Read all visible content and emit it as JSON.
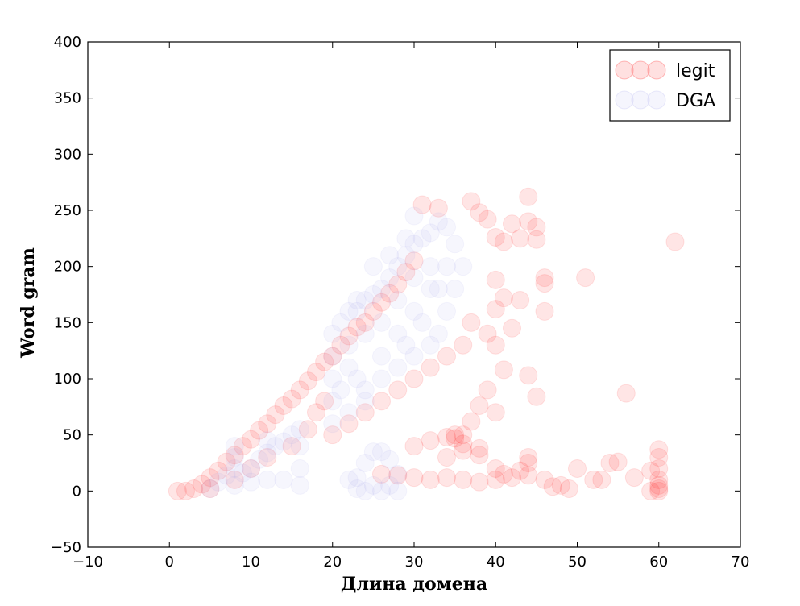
{
  "chart_data": {
    "type": "scatter",
    "title": "",
    "xlabel": "Длина домена",
    "ylabel": "Word gram",
    "xlim": [
      -10,
      70
    ],
    "ylim": [
      -50,
      400
    ],
    "xticks": [
      -10,
      0,
      10,
      20,
      30,
      40,
      50,
      60,
      70
    ],
    "yticks": [
      -50,
      0,
      50,
      100,
      150,
      200,
      250,
      300,
      350,
      400
    ],
    "xtick_labels": [
      "−10",
      "0",
      "10",
      "20",
      "30",
      "40",
      "50",
      "60",
      "70"
    ],
    "ytick_labels": [
      "−50",
      "0",
      "50",
      "100",
      "150",
      "200",
      "250",
      "300",
      "350",
      "400"
    ],
    "grid": false,
    "legend_position": "top-right",
    "series": [
      {
        "name": "legit",
        "color": "#ff0000",
        "opacity": 0.1,
        "points": [
          [
            1,
            0
          ],
          [
            2,
            0
          ],
          [
            3,
            2
          ],
          [
            4,
            6
          ],
          [
            5,
            12
          ],
          [
            6,
            18
          ],
          [
            7,
            26
          ],
          [
            8,
            32
          ],
          [
            9,
            40
          ],
          [
            10,
            46
          ],
          [
            11,
            54
          ],
          [
            12,
            60
          ],
          [
            13,
            68
          ],
          [
            14,
            76
          ],
          [
            15,
            82
          ],
          [
            16,
            90
          ],
          [
            17,
            98
          ],
          [
            18,
            106
          ],
          [
            19,
            115
          ],
          [
            20,
            120
          ],
          [
            21,
            130
          ],
          [
            22,
            138
          ],
          [
            23,
            146
          ],
          [
            24,
            150
          ],
          [
            25,
            160
          ],
          [
            26,
            168
          ],
          [
            27,
            176
          ],
          [
            28,
            184
          ],
          [
            29,
            195
          ],
          [
            30,
            205
          ],
          [
            5,
            2
          ],
          [
            8,
            10
          ],
          [
            10,
            20
          ],
          [
            12,
            30
          ],
          [
            15,
            40
          ],
          [
            17,
            55
          ],
          [
            18,
            70
          ],
          [
            19,
            80
          ],
          [
            20,
            50
          ],
          [
            22,
            60
          ],
          [
            24,
            70
          ],
          [
            26,
            80
          ],
          [
            28,
            90
          ],
          [
            30,
            100
          ],
          [
            32,
            110
          ],
          [
            34,
            120
          ],
          [
            36,
            130
          ],
          [
            37,
            150
          ],
          [
            30,
            40
          ],
          [
            32,
            45
          ],
          [
            34,
            48
          ],
          [
            36,
            42
          ],
          [
            35,
            50
          ],
          [
            34,
            30
          ],
          [
            36,
            36
          ],
          [
            38,
            32
          ],
          [
            26,
            15
          ],
          [
            28,
            14
          ],
          [
            30,
            12
          ],
          [
            32,
            10
          ],
          [
            34,
            12
          ],
          [
            36,
            10
          ],
          [
            38,
            8
          ],
          [
            40,
            10
          ],
          [
            42,
            12
          ],
          [
            44,
            14
          ],
          [
            46,
            10
          ],
          [
            48,
            5
          ],
          [
            50,
            20
          ],
          [
            52,
            10
          ],
          [
            54,
            25
          ],
          [
            55,
            26
          ],
          [
            57,
            12
          ],
          [
            59,
            18
          ],
          [
            60,
            37
          ],
          [
            60,
            30
          ],
          [
            60,
            20
          ],
          [
            60,
            10
          ],
          [
            60,
            5
          ],
          [
            60,
            2
          ],
          [
            60,
            0
          ],
          [
            59,
            0
          ],
          [
            31,
            255
          ],
          [
            33,
            252
          ],
          [
            37,
            258
          ],
          [
            38,
            248
          ],
          [
            39,
            242
          ],
          [
            40,
            226
          ],
          [
            41,
            222
          ],
          [
            42,
            238
          ],
          [
            43,
            225
          ],
          [
            44,
            262
          ],
          [
            44,
            240
          ],
          [
            45,
            235
          ],
          [
            45,
            224
          ],
          [
            46,
            190
          ],
          [
            46,
            160
          ],
          [
            46,
            185
          ],
          [
            51,
            190
          ],
          [
            56,
            87
          ],
          [
            62,
            222
          ],
          [
            44,
            103
          ],
          [
            45,
            84
          ],
          [
            40,
            188
          ],
          [
            41,
            172
          ],
          [
            43,
            170
          ],
          [
            42,
            145
          ],
          [
            40,
            162
          ],
          [
            39,
            140
          ],
          [
            40,
            130
          ],
          [
            41,
            108
          ],
          [
            39,
            90
          ],
          [
            40,
            70
          ],
          [
            38,
            76
          ],
          [
            37,
            62
          ],
          [
            36,
            50
          ],
          [
            35,
            47
          ],
          [
            38,
            38
          ],
          [
            40,
            20
          ],
          [
            41,
            15
          ],
          [
            43,
            18
          ],
          [
            44,
            25
          ],
          [
            44,
            30
          ],
          [
            47,
            4
          ],
          [
            49,
            2
          ],
          [
            53,
            10
          ]
        ]
      },
      {
        "name": "DGA",
        "color": "#aaaaee",
        "opacity": 0.1,
        "points": [
          [
            5,
            2
          ],
          [
            6,
            8
          ],
          [
            7,
            14
          ],
          [
            8,
            20
          ],
          [
            8,
            40
          ],
          [
            8,
            30
          ],
          [
            9,
            16
          ],
          [
            10,
            20
          ],
          [
            11,
            28
          ],
          [
            12,
            34
          ],
          [
            12,
            45
          ],
          [
            13,
            40
          ],
          [
            14,
            44
          ],
          [
            15,
            50
          ],
          [
            16,
            55
          ],
          [
            16,
            40
          ],
          [
            16,
            20
          ],
          [
            16,
            5
          ],
          [
            12,
            10
          ],
          [
            8,
            5
          ],
          [
            10,
            8
          ],
          [
            14,
            10
          ],
          [
            20,
            60
          ],
          [
            20,
            80
          ],
          [
            20,
            100
          ],
          [
            20,
            120
          ],
          [
            20,
            140
          ],
          [
            21,
            150
          ],
          [
            22,
            160
          ],
          [
            23,
            160
          ],
          [
            24,
            170
          ],
          [
            25,
            175
          ],
          [
            26,
            180
          ],
          [
            27,
            190
          ],
          [
            28,
            200
          ],
          [
            29,
            210
          ],
          [
            30,
            220
          ],
          [
            31,
            225
          ],
          [
            32,
            230
          ],
          [
            33,
            240
          ],
          [
            34,
            235
          ],
          [
            35,
            220
          ],
          [
            36,
            200
          ],
          [
            35,
            180
          ],
          [
            34,
            160
          ],
          [
            33,
            140
          ],
          [
            32,
            130
          ],
          [
            30,
            120
          ],
          [
            28,
            110
          ],
          [
            26,
            100
          ],
          [
            24,
            90
          ],
          [
            23,
            100
          ],
          [
            22,
            110
          ],
          [
            21,
            90
          ],
          [
            22,
            70
          ],
          [
            24,
            80
          ],
          [
            26,
            120
          ],
          [
            28,
            140
          ],
          [
            30,
            160
          ],
          [
            32,
            180
          ],
          [
            34,
            200
          ],
          [
            30,
            245
          ],
          [
            29,
            225
          ],
          [
            27,
            210
          ],
          [
            25,
            200
          ],
          [
            23,
            170
          ],
          [
            22,
            130
          ],
          [
            24,
            140
          ],
          [
            26,
            150
          ],
          [
            28,
            170
          ],
          [
            30,
            190
          ],
          [
            32,
            200
          ],
          [
            33,
            180
          ],
          [
            31,
            150
          ],
          [
            29,
            130
          ],
          [
            22,
            10
          ],
          [
            23,
            12
          ],
          [
            24,
            25
          ],
          [
            25,
            35
          ],
          [
            26,
            35
          ],
          [
            27,
            28
          ],
          [
            28,
            15
          ],
          [
            25,
            5
          ],
          [
            27,
            5
          ],
          [
            23,
            2
          ],
          [
            26,
            0
          ],
          [
            28,
            0
          ],
          [
            24,
            0
          ]
        ]
      }
    ]
  }
}
